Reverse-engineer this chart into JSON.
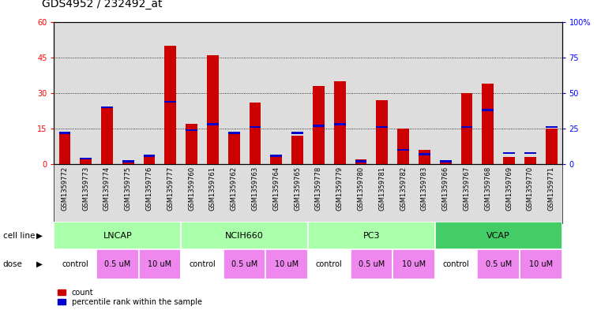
{
  "title": "GDS4952 / 232492_at",
  "samples": [
    "GSM1359772",
    "GSM1359773",
    "GSM1359774",
    "GSM1359775",
    "GSM1359776",
    "GSM1359777",
    "GSM1359760",
    "GSM1359761",
    "GSM1359762",
    "GSM1359763",
    "GSM1359764",
    "GSM1359765",
    "GSM1359778",
    "GSM1359779",
    "GSM1359780",
    "GSM1359781",
    "GSM1359782",
    "GSM1359783",
    "GSM1359766",
    "GSM1359767",
    "GSM1359768",
    "GSM1359769",
    "GSM1359770",
    "GSM1359771"
  ],
  "counts": [
    13,
    2,
    24,
    1,
    4,
    50,
    17,
    46,
    13,
    26,
    4,
    12,
    33,
    35,
    2,
    27,
    15,
    6,
    1,
    30,
    34,
    3,
    3,
    15
  ],
  "percentiles": [
    22,
    4,
    40,
    2,
    6,
    44,
    24,
    28,
    22,
    26,
    6,
    22,
    27,
    28,
    2,
    26,
    10,
    7,
    2,
    26,
    38,
    8,
    8,
    26
  ],
  "cell_lines": [
    {
      "name": "LNCAP",
      "start": 0,
      "end": 6,
      "color": "#aaffaa"
    },
    {
      "name": "NCIH660",
      "start": 6,
      "end": 12,
      "color": "#aaffaa"
    },
    {
      "name": "PC3",
      "start": 12,
      "end": 18,
      "color": "#aaffaa"
    },
    {
      "name": "VCAP",
      "start": 18,
      "end": 24,
      "color": "#44cc66"
    }
  ],
  "doses": [
    {
      "label": "control",
      "start": 0,
      "end": 2,
      "color": "#ffffff"
    },
    {
      "label": "0.5 uM",
      "start": 2,
      "end": 4,
      "color": "#ee88ee"
    },
    {
      "label": "10 uM",
      "start": 4,
      "end": 6,
      "color": "#ee88ee"
    },
    {
      "label": "control",
      "start": 6,
      "end": 8,
      "color": "#ffffff"
    },
    {
      "label": "0.5 uM",
      "start": 8,
      "end": 10,
      "color": "#ee88ee"
    },
    {
      "label": "10 uM",
      "start": 10,
      "end": 12,
      "color": "#ee88ee"
    },
    {
      "label": "control",
      "start": 12,
      "end": 14,
      "color": "#ffffff"
    },
    {
      "label": "0.5 uM",
      "start": 14,
      "end": 16,
      "color": "#ee88ee"
    },
    {
      "label": "10 uM",
      "start": 16,
      "end": 18,
      "color": "#ee88ee"
    },
    {
      "label": "control",
      "start": 18,
      "end": 20,
      "color": "#ffffff"
    },
    {
      "label": "0.5 uM",
      "start": 20,
      "end": 22,
      "color": "#ee88ee"
    },
    {
      "label": "10 uM",
      "start": 22,
      "end": 24,
      "color": "#ee88ee"
    }
  ],
  "ylim_left": [
    0,
    60
  ],
  "ylim_right": [
    0,
    100
  ],
  "yticks_left": [
    0,
    15,
    30,
    45,
    60
  ],
  "yticks_right": [
    0,
    25,
    50,
    75,
    100
  ],
  "bar_color": "#CC0000",
  "percentile_color": "#0000CC",
  "bg_color": "#dddddd",
  "title_fontsize": 10,
  "tick_fontsize": 7,
  "sample_fontsize": 6
}
